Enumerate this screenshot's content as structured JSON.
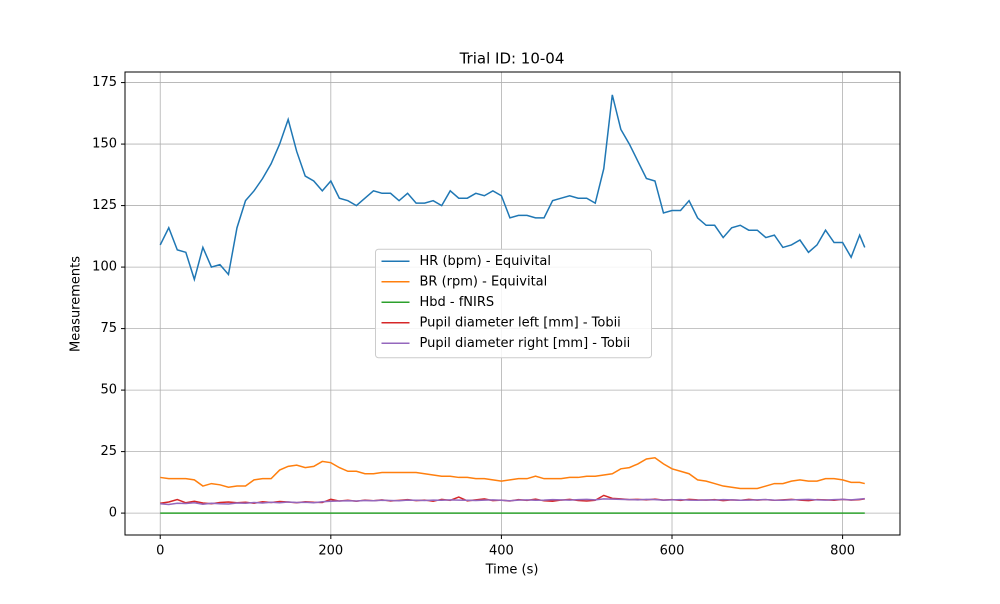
{
  "chart_data": {
    "type": "line",
    "title": "Trial ID: 10-04",
    "xlabel": "Time (s)",
    "ylabel": "Measurements",
    "x": [
      0,
      10,
      20,
      30,
      40,
      50,
      60,
      70,
      80,
      90,
      100,
      110,
      120,
      130,
      140,
      150,
      160,
      170,
      180,
      190,
      200,
      210,
      220,
      230,
      240,
      250,
      260,
      270,
      280,
      290,
      300,
      310,
      320,
      330,
      340,
      350,
      360,
      370,
      380,
      390,
      400,
      410,
      420,
      430,
      440,
      450,
      460,
      470,
      480,
      490,
      500,
      510,
      520,
      530,
      540,
      550,
      560,
      570,
      580,
      590,
      600,
      610,
      620,
      630,
      640,
      650,
      660,
      670,
      680,
      690,
      700,
      710,
      720,
      730,
      740,
      750,
      760,
      770,
      780,
      790,
      800,
      810,
      820,
      826
    ],
    "series": [
      {
        "name": "HR (bpm) - Equivital",
        "color": "#1f77b4",
        "values": [
          109,
          116,
          107,
          106,
          95,
          108,
          100,
          101,
          97,
          116,
          127,
          131,
          136,
          142,
          150,
          160,
          147,
          137,
          135,
          131,
          135,
          128,
          127,
          125,
          128,
          131,
          130,
          130,
          127,
          130,
          126,
          126,
          127,
          125,
          131,
          128,
          128,
          130,
          129,
          131,
          129,
          120,
          121,
          121,
          120,
          120,
          127,
          128,
          129,
          128,
          128,
          126,
          140,
          170,
          156,
          150,
          143,
          136,
          135,
          122,
          123,
          123,
          127,
          120,
          117,
          117,
          112,
          116,
          117,
          115,
          115,
          112,
          113,
          108,
          109,
          111,
          106,
          109,
          115,
          110,
          110,
          104,
          113,
          108
        ]
      },
      {
        "name": "BR (rpm) - Equivital",
        "color": "#ff7f0e",
        "values": [
          14.5,
          14,
          14,
          14,
          13.5,
          11,
          12,
          11.5,
          10.5,
          11,
          11,
          13.5,
          14,
          14,
          17.5,
          19,
          19.5,
          18.5,
          19,
          21,
          20.5,
          18.5,
          17,
          17,
          16,
          16,
          16.5,
          16.5,
          16.5,
          16.5,
          16.5,
          16,
          15.5,
          15,
          15,
          14.5,
          14.5,
          14,
          14,
          13.5,
          13,
          13.5,
          14,
          14,
          15,
          14,
          14,
          14,
          14.5,
          14.5,
          15,
          15,
          15.5,
          16,
          18,
          18.5,
          20,
          22,
          22.5,
          20,
          18,
          17,
          16,
          13.5,
          13,
          12,
          11,
          10.5,
          10,
          10,
          10,
          11,
          12,
          12,
          13,
          13.5,
          13,
          13,
          14,
          14,
          13.5,
          12.5,
          12.5,
          12
        ]
      },
      {
        "name": "Hbd - fNIRS",
        "color": "#2ca02c",
        "values": [
          0,
          0,
          0,
          0,
          0,
          0,
          0,
          0,
          0,
          0,
          0,
          0,
          0,
          0,
          0,
          0,
          0,
          0,
          0,
          0,
          0,
          0,
          0,
          0,
          0,
          0,
          0,
          0,
          0,
          0,
          0,
          0,
          0,
          0,
          0,
          0,
          0,
          0,
          0,
          0,
          0,
          0,
          0,
          0,
          0,
          0,
          0,
          0,
          0,
          0,
          0,
          0,
          0,
          0,
          0,
          0,
          0,
          0,
          0,
          0,
          0,
          0,
          0,
          0,
          0,
          0,
          0,
          0,
          0,
          0,
          0,
          0,
          0,
          0,
          0,
          0,
          0,
          0,
          0,
          0,
          0,
          0,
          0,
          0
        ]
      },
      {
        "name": "Pupil diameter left [mm] - Tobii",
        "color": "#d62728",
        "values": [
          4,
          4.5,
          5.5,
          4.2,
          4.8,
          4.1,
          3.8,
          4.3,
          4.5,
          4.2,
          4.4,
          4.0,
          4.6,
          4.3,
          4.7,
          4.5,
          4.2,
          4.6,
          4.4,
          4.3,
          5.6,
          4.9,
          5.2,
          4.8,
          5.3,
          5.0,
          5.4,
          4.9,
          5.2,
          5.5,
          5.1,
          5.3,
          4.8,
          5.6,
          5.2,
          6.5,
          5.0,
          5.4,
          5.8,
          5.1,
          5.3,
          4.9,
          5.5,
          5.2,
          5.7,
          5.0,
          4.8,
          5.3,
          5.6,
          5.1,
          4.9,
          5.2,
          7.2,
          6.0,
          5.8,
          5.5,
          5.6,
          5.4,
          5.7,
          5.3,
          5.5,
          5.2,
          5.6,
          5.4,
          5.3,
          5.5,
          5.1,
          5.4,
          5.2,
          5.6,
          5.3,
          5.5,
          5.2,
          5.4,
          5.6,
          5.3,
          5.1,
          5.5,
          5.4,
          5.2,
          5.6,
          5.3,
          5.5,
          5.8
        ]
      },
      {
        "name": "Pupil diameter right [mm] - Tobii",
        "color": "#9467bd",
        "values": [
          3.8,
          3.5,
          4.0,
          3.9,
          4.2,
          3.6,
          4.0,
          3.8,
          3.7,
          4.1,
          4.0,
          4.3,
          4.1,
          4.4,
          4.2,
          4.5,
          4.3,
          4.4,
          4.2,
          4.6,
          4.8,
          4.9,
          5.0,
          4.9,
          5.1,
          5.0,
          5.2,
          5.1,
          5.0,
          5.3,
          5.2,
          5.1,
          5.3,
          5.2,
          5.4,
          5.3,
          5.2,
          5.1,
          5.3,
          5.4,
          5.2,
          5.0,
          5.3,
          5.4,
          5.2,
          5.3,
          5.5,
          5.4,
          5.3,
          5.5,
          5.6,
          5.4,
          5.8,
          5.7,
          5.6,
          5.5,
          5.4,
          5.6,
          5.5,
          5.3,
          5.4,
          5.5,
          5.3,
          5.2,
          5.4,
          5.3,
          5.5,
          5.4,
          5.2,
          5.3,
          5.4,
          5.5,
          5.3,
          5.2,
          5.4,
          5.5,
          5.6,
          5.4,
          5.3,
          5.5,
          5.6,
          5.4,
          5.7,
          5.9
        ]
      }
    ],
    "xlim": [
      -41.3,
      867.3
    ],
    "ylim": [
      -8.9,
      179.3
    ],
    "xticks": [
      0,
      200,
      400,
      600,
      800
    ],
    "yticks": [
      0,
      25,
      50,
      75,
      100,
      125,
      150,
      175
    ],
    "grid": true,
    "legend": "center"
  }
}
